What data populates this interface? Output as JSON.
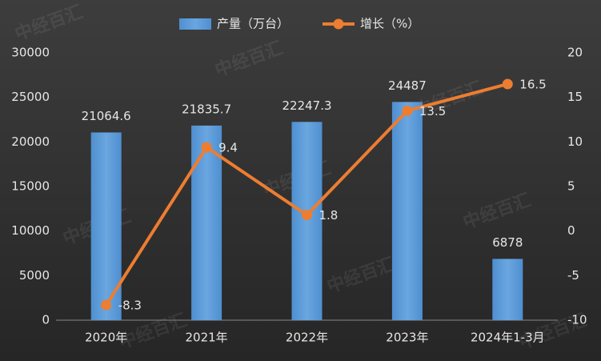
{
  "chart_data": {
    "type": "bar",
    "watermark": "中经百汇",
    "categories": [
      "2020年",
      "2021年",
      "2022年",
      "2023年",
      "2024年1-3月"
    ],
    "series": [
      {
        "name": "产量（万台）",
        "type": "bar",
        "color": "#5b9bd5",
        "values": [
          21064.6,
          21835.7,
          22247.3,
          24487,
          6878
        ]
      },
      {
        "name": "增长（%）",
        "type": "line",
        "axis": "y2",
        "color": "#ed7d31",
        "values": [
          -8.3,
          9.4,
          1.8,
          13.5,
          16.5
        ]
      }
    ],
    "ylim": [
      0,
      30000
    ],
    "yticks": [
      0,
      5000,
      10000,
      15000,
      20000,
      25000,
      30000
    ],
    "y2lim": [
      -10,
      20
    ],
    "y2ticks": [
      -10,
      -5,
      0,
      5,
      10,
      15,
      20
    ],
    "grid": false,
    "legend": "top"
  }
}
